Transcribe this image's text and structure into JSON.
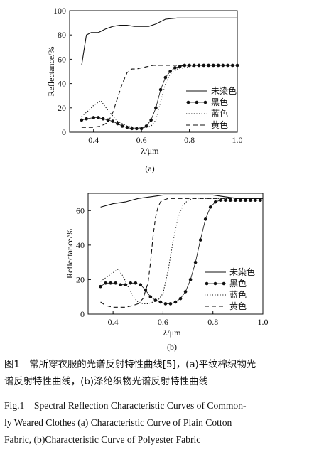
{
  "chart_data": [
    {
      "type": "line",
      "panel_label": "(a)",
      "xlabel": "λ/μm",
      "ylabel": "Reflectance/%",
      "xlim": [
        0.3,
        1.0
      ],
      "ylim": [
        0,
        100
      ],
      "xticks": [
        0.4,
        0.6,
        0.8,
        1.0
      ],
      "xtick_labels": [
        "0.4",
        "0.6",
        "0.8",
        "1.0"
      ],
      "yticks": [
        0,
        20,
        40,
        60,
        80,
        100
      ],
      "ytick_labels": [
        "0",
        "20",
        "40",
        "60",
        "80",
        "100"
      ],
      "legend_position": "right",
      "grid": false,
      "series": [
        {
          "name": "未染色",
          "style": "solid",
          "x": [
            0.35,
            0.37,
            0.39,
            0.42,
            0.45,
            0.48,
            0.51,
            0.54,
            0.57,
            0.6,
            0.63,
            0.66,
            0.7,
            0.75,
            0.8,
            0.85,
            0.9,
            0.95,
            1.0
          ],
          "y": [
            55,
            80,
            82,
            82,
            85,
            87,
            88,
            88,
            87,
            87,
            87,
            89,
            93,
            94,
            94,
            94,
            94,
            94,
            94
          ]
        },
        {
          "name": "黑色",
          "style": "dots",
          "x": [
            0.35,
            0.37,
            0.4,
            0.42,
            0.44,
            0.46,
            0.48,
            0.5,
            0.52,
            0.54,
            0.56,
            0.58,
            0.6,
            0.62,
            0.64,
            0.66,
            0.68,
            0.7,
            0.72,
            0.74,
            0.76,
            0.78,
            0.8,
            0.82,
            0.84,
            0.86,
            0.88,
            0.9,
            0.92,
            0.94,
            0.96,
            0.98,
            1.0
          ],
          "y": [
            10,
            11,
            12,
            12,
            11,
            10,
            9,
            7,
            5,
            4,
            3,
            3,
            3,
            5,
            10,
            20,
            35,
            45,
            50,
            53,
            54,
            55,
            55,
            55,
            55,
            55,
            55,
            55,
            55,
            55,
            55,
            55,
            55
          ]
        },
        {
          "name": "蓝色",
          "style": "dotted",
          "x": [
            0.35,
            0.38,
            0.4,
            0.43,
            0.46,
            0.5,
            0.54,
            0.58,
            0.62,
            0.64,
            0.66,
            0.68,
            0.7,
            0.72,
            0.75,
            0.8,
            0.85,
            0.9,
            0.95,
            1.0
          ],
          "y": [
            13,
            18,
            22,
            26,
            18,
            9,
            5,
            4,
            4,
            5,
            10,
            25,
            40,
            48,
            52,
            54,
            55,
            55,
            55,
            55
          ]
        },
        {
          "name": "黄色",
          "style": "dashed",
          "x": [
            0.35,
            0.4,
            0.43,
            0.46,
            0.48,
            0.5,
            0.52,
            0.54,
            0.56,
            0.58,
            0.6,
            0.65,
            0.7,
            0.75,
            0.8,
            0.85,
            0.9,
            0.95,
            1.0
          ],
          "y": [
            4,
            4,
            5,
            8,
            16,
            28,
            40,
            49,
            52,
            52,
            53,
            55,
            55,
            55,
            55,
            55,
            55,
            55,
            55
          ]
        }
      ]
    },
    {
      "type": "line",
      "panel_label": "(b)",
      "xlabel": "λ/μm",
      "ylabel": "Reflectance/%",
      "xlim": [
        0.3,
        1.0
      ],
      "ylim": [
        0,
        70
      ],
      "xticks": [
        0.4,
        0.6,
        0.8,
        1.0
      ],
      "xtick_labels": [
        "0.4",
        "0.6",
        "0.8",
        "1.0"
      ],
      "yticks": [
        0,
        20,
        40,
        60
      ],
      "ytick_labels": [
        "0",
        "20",
        "40",
        "60"
      ],
      "legend_position": "right",
      "grid": false,
      "series": [
        {
          "name": "未染色",
          "style": "solid",
          "x": [
            0.35,
            0.4,
            0.45,
            0.5,
            0.55,
            0.6,
            0.65,
            0.7,
            0.75,
            0.8,
            0.85,
            0.9,
            0.95,
            1.0
          ],
          "y": [
            62,
            64,
            65,
            67,
            68,
            69,
            69,
            69,
            69,
            69,
            68,
            67,
            67,
            67
          ]
        },
        {
          "name": "黑色",
          "style": "dots",
          "x": [
            0.35,
            0.37,
            0.39,
            0.41,
            0.43,
            0.45,
            0.47,
            0.49,
            0.51,
            0.53,
            0.55,
            0.57,
            0.59,
            0.61,
            0.63,
            0.65,
            0.67,
            0.69,
            0.71,
            0.73,
            0.75,
            0.77,
            0.79,
            0.81,
            0.83,
            0.85,
            0.87,
            0.89,
            0.91,
            0.93,
            0.95,
            0.97,
            0.99
          ],
          "y": [
            16,
            18,
            18,
            18,
            17,
            17,
            18,
            18,
            17,
            14,
            10,
            8,
            7,
            6,
            6,
            7,
            9,
            13,
            20,
            30,
            43,
            55,
            62,
            65,
            66,
            66,
            66,
            66,
            66,
            66,
            66,
            66,
            66
          ]
        },
        {
          "name": "蓝色",
          "style": "dotted",
          "x": [
            0.35,
            0.38,
            0.4,
            0.42,
            0.44,
            0.46,
            0.48,
            0.5,
            0.52,
            0.54,
            0.56,
            0.58,
            0.6,
            0.62,
            0.64,
            0.66,
            0.68,
            0.7,
            0.72,
            0.75,
            0.8,
            0.9,
            1.0
          ],
          "y": [
            19,
            22,
            24,
            26,
            22,
            16,
            10,
            7,
            6,
            6,
            7,
            8,
            12,
            25,
            42,
            56,
            63,
            66,
            67,
            67,
            67,
            67,
            67
          ]
        },
        {
          "name": "黄色",
          "style": "dashed",
          "x": [
            0.35,
            0.37,
            0.4,
            0.45,
            0.48,
            0.5,
            0.52,
            0.54,
            0.55,
            0.56,
            0.57,
            0.58,
            0.59,
            0.6,
            0.62,
            0.65,
            0.7,
            0.75,
            0.8,
            0.9,
            1.0
          ],
          "y": [
            7,
            5,
            4,
            4,
            5,
            6,
            9,
            18,
            30,
            45,
            56,
            62,
            65,
            66,
            67,
            67,
            67,
            67,
            67,
            67,
            67
          ]
        }
      ]
    }
  ],
  "caption": {
    "zh_lines": [
      "图1　常所穿衣服的光谱反射特性曲线[5]，(a)平纹棉织物光",
      "谱反射特性曲线，(b)涤纶织物光谱反射特性曲线"
    ],
    "en_lines": [
      "Fig.1　Spectral Reflection Characteristic Curves of Common-",
      "ly Weared Clothes (a) Characteristic Curve of Plain Cotton",
      "Fabric, (b)Characteristic Curve of Polyester Fabric"
    ]
  },
  "colors": {
    "line": "#111111",
    "background": "#ffffff"
  }
}
